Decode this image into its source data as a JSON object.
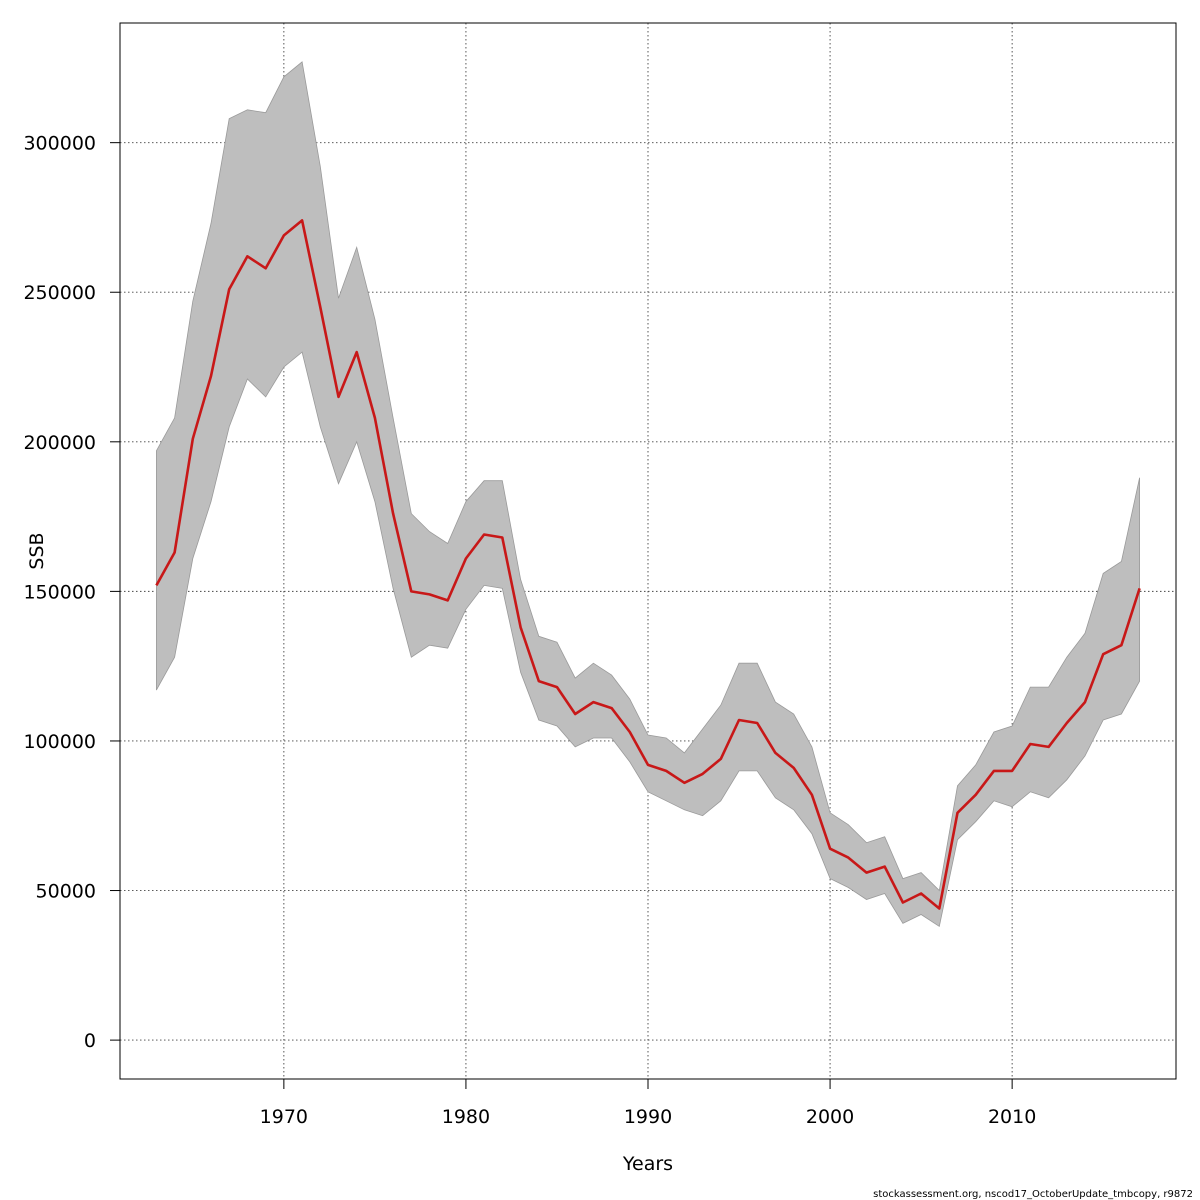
{
  "chart_data": {
    "type": "line",
    "xlabel": "Years",
    "ylabel": "SSB",
    "footnote": "stockassessment.org, nscod17_OctoberUpdate_tmbcopy, r9872",
    "xlim": [
      1961,
      2019
    ],
    "ylim": [
      -13000,
      340000
    ],
    "x_ticks": [
      1970,
      1980,
      1990,
      2000,
      2010
    ],
    "y_ticks": [
      0,
      50000,
      100000,
      150000,
      200000,
      250000,
      300000
    ],
    "grid": true,
    "colors": {
      "line": "#c81818",
      "band": "#bebebe",
      "band_edge": "#9a9a9a"
    },
    "x": [
      1963,
      1964,
      1965,
      1966,
      1967,
      1968,
      1969,
      1970,
      1971,
      1972,
      1973,
      1974,
      1975,
      1976,
      1977,
      1978,
      1979,
      1980,
      1981,
      1982,
      1983,
      1984,
      1985,
      1986,
      1987,
      1988,
      1989,
      1990,
      1991,
      1992,
      1993,
      1994,
      1995,
      1996,
      1997,
      1998,
      1999,
      2000,
      2001,
      2002,
      2003,
      2004,
      2005,
      2006,
      2007,
      2008,
      2009,
      2010,
      2011,
      2012,
      2013,
      2014,
      2015,
      2016,
      2017
    ],
    "series": [
      {
        "name": "SSB",
        "role": "estimate",
        "values": [
          152000,
          163000,
          201000,
          222000,
          251000,
          262000,
          258000,
          269000,
          274000,
          245000,
          215000,
          230000,
          208000,
          176000,
          150000,
          149000,
          147000,
          161000,
          169000,
          168000,
          138000,
          120000,
          118000,
          109000,
          113000,
          111000,
          103000,
          92000,
          90000,
          86000,
          89000,
          94000,
          107000,
          106000,
          96000,
          91000,
          82000,
          64000,
          61000,
          56000,
          58000,
          46000,
          49000,
          44000,
          76000,
          82000,
          90000,
          90000,
          99000,
          98000,
          106000,
          113000,
          129000,
          132000,
          151000
        ]
      },
      {
        "name": "lower",
        "role": "band-low",
        "values": [
          117000,
          128000,
          161000,
          180000,
          205000,
          221000,
          215000,
          225000,
          230000,
          205000,
          186000,
          200000,
          180000,
          151000,
          128000,
          132000,
          131000,
          144000,
          152000,
          151000,
          123000,
          107000,
          105000,
          98000,
          101000,
          101000,
          93000,
          83000,
          80000,
          77000,
          75000,
          80000,
          90000,
          90000,
          81000,
          77000,
          69000,
          54000,
          51000,
          47000,
          49000,
          39000,
          42000,
          38000,
          67000,
          73000,
          80000,
          78000,
          83000,
          81000,
          87000,
          95000,
          107000,
          109000,
          120000
        ]
      },
      {
        "name": "upper",
        "role": "band-high",
        "values": [
          197000,
          208000,
          247000,
          273000,
          308000,
          311000,
          310000,
          322000,
          327000,
          292000,
          248000,
          265000,
          241000,
          208000,
          176000,
          170000,
          166000,
          180000,
          187000,
          187000,
          154000,
          135000,
          133000,
          121000,
          126000,
          122000,
          114000,
          102000,
          101000,
          96000,
          104000,
          112000,
          126000,
          126000,
          113000,
          109000,
          98000,
          76000,
          72000,
          66000,
          68000,
          54000,
          56000,
          50000,
          85000,
          92000,
          103000,
          105000,
          118000,
          118000,
          128000,
          136000,
          156000,
          160000,
          188000
        ]
      }
    ]
  }
}
